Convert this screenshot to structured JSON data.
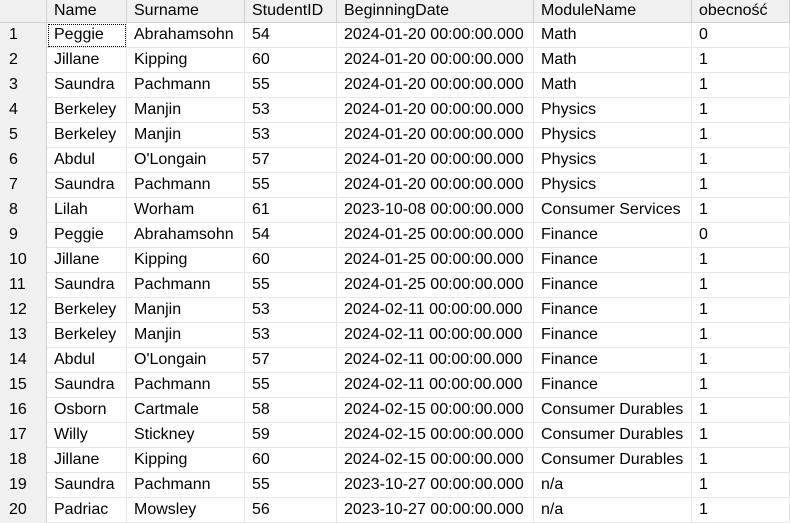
{
  "columns": [
    "Name",
    "Surname",
    "StudentID",
    "BeginningDate",
    "ModuleName",
    "obecność"
  ],
  "rows": [
    {
      "n": "1",
      "name": "Peggie",
      "surname": "Abrahamsohn",
      "id": "54",
      "date": "2024-01-20 00:00:00.000",
      "module": "Math",
      "ob": "0"
    },
    {
      "n": "2",
      "name": "Jillane",
      "surname": "Kipping",
      "id": "60",
      "date": "2024-01-20 00:00:00.000",
      "module": "Math",
      "ob": "1"
    },
    {
      "n": "3",
      "name": "Saundra",
      "surname": "Pachmann",
      "id": "55",
      "date": "2024-01-20 00:00:00.000",
      "module": "Math",
      "ob": "1"
    },
    {
      "n": "4",
      "name": "Berkeley",
      "surname": "Manjin",
      "id": "53",
      "date": "2024-01-20 00:00:00.000",
      "module": "Physics",
      "ob": "1"
    },
    {
      "n": "5",
      "name": "Berkeley",
      "surname": "Manjin",
      "id": "53",
      "date": "2024-01-20 00:00:00.000",
      "module": "Physics",
      "ob": "1"
    },
    {
      "n": "6",
      "name": "Abdul",
      "surname": "O'Longain",
      "id": "57",
      "date": "2024-01-20 00:00:00.000",
      "module": "Physics",
      "ob": "1"
    },
    {
      "n": "7",
      "name": "Saundra",
      "surname": "Pachmann",
      "id": "55",
      "date": "2024-01-20 00:00:00.000",
      "module": "Physics",
      "ob": "1"
    },
    {
      "n": "8",
      "name": "Lilah",
      "surname": "Worham",
      "id": "61",
      "date": "2023-10-08 00:00:00.000",
      "module": "Consumer Services",
      "ob": "1"
    },
    {
      "n": "9",
      "name": "Peggie",
      "surname": "Abrahamsohn",
      "id": "54",
      "date": "2024-01-25 00:00:00.000",
      "module": "Finance",
      "ob": "0"
    },
    {
      "n": "10",
      "name": "Jillane",
      "surname": "Kipping",
      "id": "60",
      "date": "2024-01-25 00:00:00.000",
      "module": "Finance",
      "ob": "1"
    },
    {
      "n": "11",
      "name": "Saundra",
      "surname": "Pachmann",
      "id": "55",
      "date": "2024-01-25 00:00:00.000",
      "module": "Finance",
      "ob": "1"
    },
    {
      "n": "12",
      "name": "Berkeley",
      "surname": "Manjin",
      "id": "53",
      "date": "2024-02-11 00:00:00.000",
      "module": "Finance",
      "ob": "1"
    },
    {
      "n": "13",
      "name": "Berkeley",
      "surname": "Manjin",
      "id": "53",
      "date": "2024-02-11 00:00:00.000",
      "module": "Finance",
      "ob": "1"
    },
    {
      "n": "14",
      "name": "Abdul",
      "surname": "O'Longain",
      "id": "57",
      "date": "2024-02-11 00:00:00.000",
      "module": "Finance",
      "ob": "1"
    },
    {
      "n": "15",
      "name": "Saundra",
      "surname": "Pachmann",
      "id": "55",
      "date": "2024-02-11 00:00:00.000",
      "module": "Finance",
      "ob": "1"
    },
    {
      "n": "16",
      "name": "Osborn",
      "surname": "Cartmale",
      "id": "58",
      "date": "2024-02-15 00:00:00.000",
      "module": "Consumer Durables",
      "ob": "1"
    },
    {
      "n": "17",
      "name": "Willy",
      "surname": "Stickney",
      "id": "59",
      "date": "2024-02-15 00:00:00.000",
      "module": "Consumer Durables",
      "ob": "1"
    },
    {
      "n": "18",
      "name": "Jillane",
      "surname": "Kipping",
      "id": "60",
      "date": "2024-02-15 00:00:00.000",
      "module": "Consumer Durables",
      "ob": "1"
    },
    {
      "n": "19",
      "name": "Saundra",
      "surname": "Pachmann",
      "id": "55",
      "date": "2023-10-27 00:00:00.000",
      "module": "n/a",
      "ob": "1"
    },
    {
      "n": "20",
      "name": "Padriac",
      "surname": "Mowsley",
      "id": "56",
      "date": "2023-10-27 00:00:00.000",
      "module": "n/a",
      "ob": "1"
    }
  ],
  "colors": {
    "header_bg": "#f0f0f0",
    "grid_line": "#e6e6e6",
    "header_line": "#d0d0d0",
    "text": "#000000"
  }
}
